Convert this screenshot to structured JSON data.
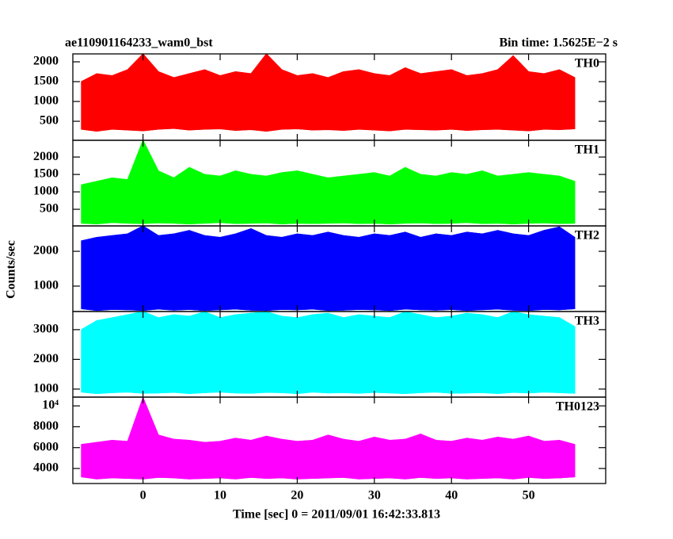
{
  "title": "ae110901164233_wam0_bst",
  "bin_time": "Bin time: 1.5625E−2 s",
  "y_label": "Counts/sec",
  "x_label": "Time [sec] 0 = 2011/09/01 16:42:33.813",
  "chart_data": [
    {
      "type": "range",
      "label": "TH0",
      "color": "#ff0000",
      "x": [
        -8,
        -6,
        -4,
        -2,
        0,
        2,
        4,
        6,
        8,
        10,
        12,
        14,
        16,
        18,
        20,
        22,
        24,
        26,
        28,
        30,
        32,
        34,
        36,
        38,
        40,
        42,
        44,
        46,
        48,
        50,
        52,
        54,
        56
      ],
      "series": [
        {
          "values": [
            1500,
            1700,
            1650,
            1800,
            2200,
            1750,
            1600,
            1700,
            1800,
            1650,
            1750,
            1700,
            2200,
            1800,
            1650,
            1700,
            1600,
            1750,
            1800,
            1700,
            1650,
            1850,
            1700,
            1750,
            1800,
            1650,
            1700,
            1800,
            2150,
            1750,
            1700,
            1800,
            1600
          ]
        },
        {
          "values": [
            300,
            250,
            300,
            280,
            260,
            300,
            320,
            280,
            300,
            310,
            270,
            290,
            250,
            300,
            310,
            280,
            290,
            270,
            300,
            280,
            260,
            300,
            290,
            280,
            300,
            270,
            290,
            300,
            280,
            260,
            300,
            290,
            310
          ]
        }
      ],
      "xlim": [
        -9.1,
        60
      ],
      "xticks": [
        0,
        10,
        20,
        30,
        40,
        50
      ],
      "ylim": [
        20,
        2200
      ],
      "yticks": [
        500,
        1000,
        1500,
        2000
      ]
    },
    {
      "type": "range",
      "label": "TH1",
      "color": "#00ff00",
      "x": [
        -8,
        -6,
        -4,
        -2,
        0,
        2,
        4,
        6,
        8,
        10,
        12,
        14,
        16,
        18,
        20,
        22,
        24,
        26,
        28,
        30,
        32,
        34,
        36,
        38,
        40,
        42,
        44,
        46,
        48,
        50,
        52,
        54,
        56
      ],
      "series": [
        {
          "values": [
            1200,
            1300,
            1400,
            1350,
            2480,
            1600,
            1400,
            1700,
            1500,
            1450,
            1600,
            1500,
            1450,
            1550,
            1600,
            1500,
            1400,
            1450,
            1500,
            1550,
            1450,
            1700,
            1500,
            1450,
            1550,
            1500,
            1600,
            1450,
            1500,
            1550,
            1500,
            1450,
            1300
          ]
        },
        {
          "values": [
            100,
            80,
            120,
            100,
            90,
            110,
            100,
            80,
            100,
            120,
            90,
            100,
            110,
            80,
            100,
            90,
            100,
            110,
            90,
            100,
            80,
            100,
            110,
            90,
            100,
            120,
            90,
            100,
            80,
            100,
            110,
            90,
            100
          ]
        }
      ],
      "xlim": [
        -9.1,
        60
      ],
      "xticks": [
        0,
        10,
        20,
        30,
        40,
        50
      ],
      "ylim": [
        23,
        2480
      ],
      "yticks": [
        500,
        1000,
        1500,
        2000
      ]
    },
    {
      "type": "range",
      "label": "TH2",
      "color": "#0000ff",
      "x": [
        -8,
        -6,
        -4,
        -2,
        0,
        2,
        4,
        6,
        8,
        10,
        12,
        14,
        16,
        18,
        20,
        22,
        24,
        26,
        28,
        30,
        32,
        34,
        36,
        38,
        40,
        42,
        44,
        46,
        48,
        50,
        52,
        54,
        56
      ],
      "series": [
        {
          "values": [
            2300,
            2400,
            2450,
            2500,
            2730,
            2450,
            2500,
            2600,
            2450,
            2400,
            2500,
            2650,
            2450,
            2400,
            2500,
            2450,
            2550,
            2450,
            2400,
            2500,
            2450,
            2550,
            2400,
            2500,
            2450,
            2550,
            2500,
            2600,
            2500,
            2450,
            2600,
            2700,
            2400
          ]
        },
        {
          "values": [
            350,
            300,
            330,
            320,
            300,
            340,
            310,
            330,
            300,
            320,
            340,
            310,
            300,
            330,
            320,
            340,
            300,
            310,
            330,
            320,
            300,
            340,
            320,
            310,
            330,
            300,
            320,
            340,
            310,
            300,
            330,
            320,
            350
          ]
        }
      ],
      "xlim": [
        -9.1,
        60
      ],
      "xticks": [
        0,
        10,
        20,
        30,
        40,
        50
      ],
      "ylim": [
        270,
        2730
      ],
      "yticks": [
        1000,
        2000
      ]
    },
    {
      "type": "range",
      "label": "TH3",
      "color": "#00ffff",
      "x": [
        -8,
        -6,
        -4,
        -2,
        0,
        2,
        4,
        6,
        8,
        10,
        12,
        14,
        16,
        18,
        20,
        22,
        24,
        26,
        28,
        30,
        32,
        34,
        36,
        38,
        40,
        42,
        44,
        46,
        48,
        50,
        52,
        54,
        56
      ],
      "series": [
        {
          "values": [
            3000,
            3300,
            3400,
            3500,
            3610,
            3400,
            3500,
            3450,
            3600,
            3400,
            3500,
            3550,
            3600,
            3450,
            3400,
            3500,
            3550,
            3400,
            3500,
            3450,
            3400,
            3600,
            3500,
            3400,
            3450,
            3550,
            3500,
            3400,
            3600,
            3500,
            3450,
            3400,
            3100
          ]
        },
        {
          "values": [
            900,
            850,
            880,
            900,
            860,
            870,
            890,
            850,
            880,
            900,
            870,
            860,
            890,
            880,
            850,
            900,
            870,
            880,
            860,
            890,
            870,
            850,
            880,
            900,
            860,
            870,
            880,
            850,
            890,
            870,
            900,
            880,
            860
          ]
        }
      ],
      "xlim": [
        -9.1,
        60
      ],
      "xticks": [
        0,
        10,
        20,
        30,
        40,
        50
      ],
      "ylim": [
        730,
        3610
      ],
      "yticks": [
        1000,
        2000,
        3000
      ]
    },
    {
      "type": "range",
      "label": "TH0123",
      "color": "#ff00ff",
      "x": [
        -8,
        -6,
        -4,
        -2,
        0,
        2,
        4,
        6,
        8,
        10,
        12,
        14,
        16,
        18,
        20,
        22,
        24,
        26,
        28,
        30,
        32,
        34,
        36,
        38,
        40,
        42,
        44,
        46,
        48,
        50,
        52,
        54,
        56
      ],
      "series": [
        {
          "values": [
            6300,
            6500,
            6700,
            6600,
            10800,
            7200,
            6800,
            6700,
            6500,
            6600,
            6900,
            6700,
            7100,
            6800,
            6600,
            6700,
            7200,
            6800,
            6600,
            7000,
            6700,
            6800,
            7300,
            6700,
            6600,
            6900,
            6700,
            7000,
            6800,
            7100,
            6600,
            6700,
            6300
          ]
        },
        {
          "values": [
            3200,
            3000,
            3100,
            3050,
            3000,
            3150,
            3100,
            3000,
            3050,
            3100,
            3000,
            3150,
            3050,
            3100,
            3000,
            3050,
            3100,
            3150,
            3000,
            3050,
            3100,
            3000,
            3150,
            3050,
            3100,
            3000,
            3050,
            3100,
            3000,
            3150,
            3050,
            3100,
            3200
          ]
        }
      ],
      "xlim": [
        -9.1,
        60
      ],
      "xticks": [
        0,
        10,
        20,
        30,
        40,
        50
      ],
      "ylim": [
        2560,
        10840
      ],
      "yticks": [
        4000,
        6000,
        8000,
        {
          "value": 10000,
          "label": "10⁴"
        }
      ]
    }
  ]
}
